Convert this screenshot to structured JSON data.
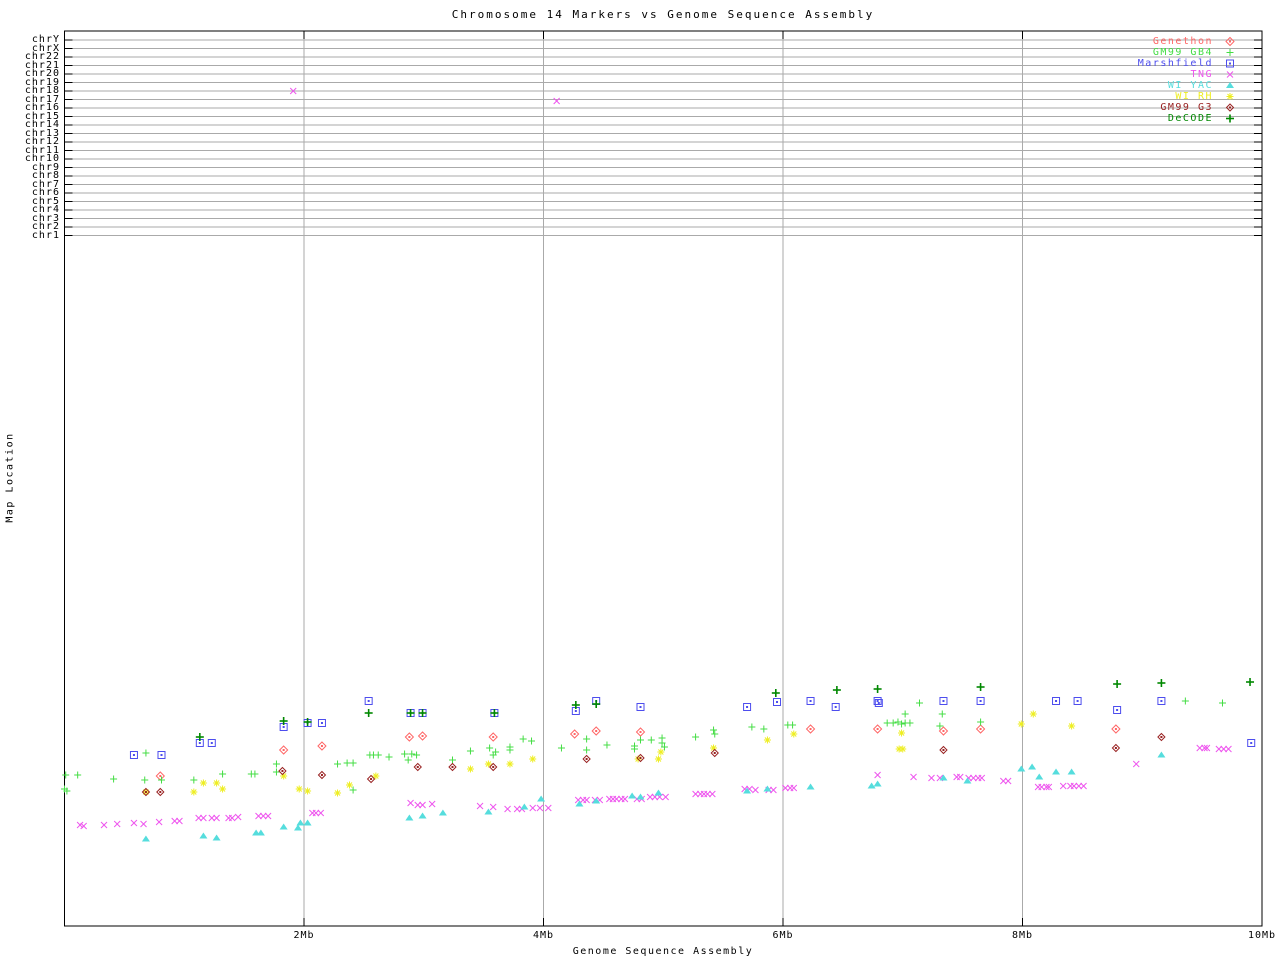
{
  "chart_data": {
    "type": "scatter",
    "title": "Chromosome 14 Markers vs Genome Sequence Assembly",
    "xlabel": "Genome Sequence Assembly",
    "ylabel": "Map Location",
    "x_unit": "Mb",
    "xlim": [
      0,
      10
    ],
    "x_gridlines_mb": [
      2,
      4,
      6,
      8
    ],
    "x_ticks": [
      {
        "mb": 2,
        "label": "2Mb"
      },
      {
        "mb": 4,
        "label": "4Mb"
      },
      {
        "mb": 6,
        "label": "6Mb"
      },
      {
        "mb": 8,
        "label": "8Mb"
      },
      {
        "mb": 10,
        "label": "10Mb"
      }
    ],
    "y_axis_chromosome_rows": [
      "chrY",
      "chrX",
      "chr22",
      "chr21",
      "chr20",
      "chr19",
      "chr18",
      "chr17",
      "chr16",
      "chr15",
      "chr14",
      "chr13",
      "chr12",
      "chr11",
      "chr10",
      "chr9",
      "chr8",
      "chr7",
      "chr6",
      "chr5",
      "chr4",
      "chr3",
      "chr2",
      "chr1"
    ],
    "grid": true,
    "legend_position": "top-right",
    "colors": {
      "grid": "#aaaaaa",
      "frame": "#000000",
      "background": "#ffffff"
    },
    "note": "x values in Mb read from axis; y values are vertical plot positions in screen px (Map Location axis has no numeric labels; chromosome rows occupy y 40-236). Two TNG markers fall on the chr18 and chr17 rows.",
    "series": [
      {
        "name": "Genethon",
        "marker": "diamond",
        "color": "#ff6666",
        "points": [
          [
            0.8,
            776
          ],
          [
            1.83,
            750
          ],
          [
            2.15,
            746
          ],
          [
            2.88,
            737
          ],
          [
            2.99,
            736
          ],
          [
            3.58,
            737
          ],
          [
            4.26,
            734
          ],
          [
            4.44,
            731
          ],
          [
            4.81,
            732
          ],
          [
            6.23,
            729
          ],
          [
            6.79,
            729
          ],
          [
            7.34,
            731
          ],
          [
            7.65,
            729
          ],
          [
            8.78,
            729
          ]
        ]
      },
      {
        "name": "GM99 GB4",
        "marker": "plus",
        "color": "#44dd44",
        "points": [
          [
            0.0,
            789
          ],
          [
            0.02,
            791
          ],
          [
            0.01,
            775
          ],
          [
            0.11,
            775
          ],
          [
            0.41,
            779
          ],
          [
            0.67,
            780
          ],
          [
            0.68,
            753
          ],
          [
            0.81,
            780
          ],
          [
            1.08,
            780
          ],
          [
            1.32,
            774
          ],
          [
            1.56,
            774
          ],
          [
            1.59,
            774
          ],
          [
            1.77,
            764
          ],
          [
            1.77,
            772
          ],
          [
            2.28,
            764
          ],
          [
            2.36,
            763
          ],
          [
            2.41,
            763
          ],
          [
            2.41,
            790
          ],
          [
            2.55,
            755
          ],
          [
            2.58,
            755
          ],
          [
            2.62,
            755
          ],
          [
            2.71,
            757
          ],
          [
            2.84,
            754
          ],
          [
            2.87,
            760
          ],
          [
            2.9,
            754
          ],
          [
            2.94,
            755
          ],
          [
            3.24,
            760
          ],
          [
            3.39,
            751
          ],
          [
            3.55,
            748
          ],
          [
            3.58,
            755
          ],
          [
            3.6,
            752
          ],
          [
            3.72,
            747
          ],
          [
            3.72,
            750
          ],
          [
            3.83,
            739
          ],
          [
            3.9,
            741
          ],
          [
            4.15,
            748
          ],
          [
            4.36,
            739
          ],
          [
            4.36,
            750
          ],
          [
            4.53,
            745
          ],
          [
            4.76,
            746
          ],
          [
            4.76,
            749
          ],
          [
            4.81,
            740
          ],
          [
            4.9,
            740
          ],
          [
            4.99,
            738
          ],
          [
            4.99,
            743
          ],
          [
            5.01,
            747
          ],
          [
            5.27,
            737
          ],
          [
            5.42,
            730
          ],
          [
            5.43,
            734
          ],
          [
            5.74,
            727
          ],
          [
            5.84,
            729
          ],
          [
            6.04,
            725
          ],
          [
            6.08,
            725
          ],
          [
            6.87,
            723
          ],
          [
            6.92,
            723
          ],
          [
            6.96,
            722
          ],
          [
            6.99,
            724
          ],
          [
            7.02,
            714
          ],
          [
            7.02,
            723
          ],
          [
            7.06,
            723
          ],
          [
            7.14,
            703
          ],
          [
            7.31,
            726
          ],
          [
            7.33,
            714
          ],
          [
            7.65,
            722
          ],
          [
            9.36,
            701
          ],
          [
            9.67,
            703
          ]
        ]
      },
      {
        "name": "Marshfield",
        "marker": "square-dot",
        "color": "#4d4dee",
        "points": [
          [
            0.58,
            755
          ],
          [
            0.81,
            755
          ],
          [
            1.13,
            743
          ],
          [
            1.23,
            743
          ],
          [
            1.83,
            727
          ],
          [
            2.03,
            723
          ],
          [
            2.15,
            723
          ],
          [
            2.54,
            701
          ],
          [
            2.89,
            713
          ],
          [
            2.99,
            713
          ],
          [
            3.59,
            713
          ],
          [
            4.27,
            711
          ],
          [
            4.44,
            701
          ],
          [
            4.81,
            707
          ],
          [
            5.7,
            707
          ],
          [
            5.95,
            702
          ],
          [
            6.23,
            701
          ],
          [
            6.44,
            707
          ],
          [
            6.79,
            701
          ],
          [
            6.8,
            703
          ],
          [
            7.34,
            701
          ],
          [
            7.65,
            701
          ],
          [
            8.28,
            701
          ],
          [
            8.46,
            701
          ],
          [
            8.79,
            710
          ],
          [
            9.16,
            701
          ],
          [
            9.91,
            743
          ]
        ]
      },
      {
        "name": "TNG",
        "marker": "x",
        "color": "#ee55ee",
        "points": [
          [
            0.13,
            825
          ],
          [
            0.16,
            826
          ],
          [
            0.33,
            825
          ],
          [
            0.44,
            824
          ],
          [
            0.58,
            823
          ],
          [
            0.66,
            824
          ],
          [
            0.79,
            822
          ],
          [
            0.92,
            821
          ],
          [
            0.96,
            821
          ],
          [
            1.12,
            818
          ],
          [
            1.16,
            818
          ],
          [
            1.23,
            818
          ],
          [
            1.27,
            818
          ],
          [
            1.37,
            818
          ],
          [
            1.4,
            818
          ],
          [
            1.45,
            817
          ],
          [
            1.62,
            816
          ],
          [
            1.66,
            816
          ],
          [
            1.7,
            816
          ],
          [
            1.91,
            91
          ],
          [
            2.07,
            813
          ],
          [
            2.1,
            813
          ],
          [
            2.14,
            813
          ],
          [
            2.89,
            803
          ],
          [
            2.95,
            805
          ],
          [
            2.99,
            805
          ],
          [
            3.07,
            804
          ],
          [
            3.47,
            806
          ],
          [
            3.58,
            807
          ],
          [
            3.7,
            809
          ],
          [
            3.78,
            809
          ],
          [
            3.82,
            809
          ],
          [
            3.91,
            808
          ],
          [
            3.97,
            808
          ],
          [
            4.04,
            808
          ],
          [
            4.11,
            101
          ],
          [
            4.29,
            800
          ],
          [
            4.33,
            800
          ],
          [
            4.36,
            800
          ],
          [
            4.43,
            800
          ],
          [
            4.47,
            800
          ],
          [
            4.55,
            799
          ],
          [
            4.58,
            799
          ],
          [
            4.61,
            799
          ],
          [
            4.65,
            799
          ],
          [
            4.68,
            799
          ],
          [
            4.78,
            799
          ],
          [
            4.82,
            799
          ],
          [
            4.89,
            797
          ],
          [
            4.93,
            797
          ],
          [
            4.97,
            797
          ],
          [
            5.02,
            797
          ],
          [
            5.27,
            794
          ],
          [
            5.31,
            794
          ],
          [
            5.34,
            794
          ],
          [
            5.37,
            794
          ],
          [
            5.41,
            794
          ],
          [
            5.68,
            789
          ],
          [
            5.72,
            789
          ],
          [
            5.77,
            790
          ],
          [
            5.88,
            790
          ],
          [
            5.92,
            790
          ],
          [
            6.02,
            788
          ],
          [
            6.06,
            788
          ],
          [
            6.09,
            788
          ],
          [
            6.79,
            775
          ],
          [
            7.09,
            777
          ],
          [
            7.24,
            778
          ],
          [
            7.31,
            778
          ],
          [
            7.45,
            777
          ],
          [
            7.48,
            777
          ],
          [
            7.55,
            778
          ],
          [
            7.59,
            778
          ],
          [
            7.63,
            778
          ],
          [
            7.66,
            778
          ],
          [
            7.84,
            781
          ],
          [
            7.88,
            781
          ],
          [
            8.13,
            787
          ],
          [
            8.16,
            787
          ],
          [
            8.2,
            787
          ],
          [
            8.22,
            787
          ],
          [
            8.34,
            786
          ],
          [
            8.4,
            786
          ],
          [
            8.43,
            786
          ],
          [
            8.47,
            786
          ],
          [
            8.51,
            786
          ],
          [
            8.95,
            764
          ],
          [
            9.48,
            748
          ],
          [
            9.52,
            748
          ],
          [
            9.54,
            748
          ],
          [
            9.64,
            749
          ],
          [
            9.68,
            749
          ],
          [
            9.72,
            749
          ]
        ]
      },
      {
        "name": "WI YAC",
        "marker": "triangle",
        "color": "#55dddd",
        "points": [
          [
            0.68,
            839
          ],
          [
            1.16,
            836
          ],
          [
            1.27,
            838
          ],
          [
            1.6,
            833
          ],
          [
            1.64,
            833
          ],
          [
            1.83,
            827
          ],
          [
            1.95,
            828
          ],
          [
            1.97,
            823
          ],
          [
            2.03,
            823
          ],
          [
            2.88,
            818
          ],
          [
            2.99,
            816
          ],
          [
            3.16,
            813
          ],
          [
            3.54,
            812
          ],
          [
            3.84,
            807
          ],
          [
            3.98,
            799
          ],
          [
            4.3,
            804
          ],
          [
            4.44,
            801
          ],
          [
            4.74,
            796
          ],
          [
            4.81,
            797
          ],
          [
            4.96,
            793
          ],
          [
            5.7,
            791
          ],
          [
            5.87,
            789
          ],
          [
            6.23,
            787
          ],
          [
            6.74,
            786
          ],
          [
            6.79,
            784
          ],
          [
            7.34,
            778
          ],
          [
            7.54,
            781
          ],
          [
            7.99,
            769
          ],
          [
            8.08,
            767
          ],
          [
            8.14,
            777
          ],
          [
            8.28,
            772
          ],
          [
            8.41,
            772
          ],
          [
            9.16,
            755
          ]
        ]
      },
      {
        "name": "WI RH",
        "marker": "star",
        "color": "#eeee22",
        "points": [
          [
            0.68,
            792
          ],
          [
            1.08,
            792
          ],
          [
            1.16,
            783
          ],
          [
            1.27,
            783
          ],
          [
            1.32,
            789
          ],
          [
            1.83,
            776
          ],
          [
            1.96,
            789
          ],
          [
            2.03,
            791
          ],
          [
            2.28,
            793
          ],
          [
            2.38,
            785
          ],
          [
            2.6,
            776
          ],
          [
            3.39,
            769
          ],
          [
            3.54,
            764
          ],
          [
            3.72,
            764
          ],
          [
            3.91,
            759
          ],
          [
            4.79,
            759
          ],
          [
            4.96,
            759
          ],
          [
            4.98,
            752
          ],
          [
            5.42,
            748
          ],
          [
            5.87,
            740
          ],
          [
            6.09,
            734
          ],
          [
            6.97,
            749
          ],
          [
            7.0,
            749
          ],
          [
            6.99,
            733
          ],
          [
            7.99,
            724
          ],
          [
            8.09,
            714
          ],
          [
            8.41,
            726
          ]
        ]
      },
      {
        "name": "GM99 G3",
        "marker": "diamond-dot",
        "color": "#992222",
        "points": [
          [
            0.68,
            792
          ],
          [
            0.8,
            792
          ],
          [
            1.82,
            771
          ],
          [
            2.15,
            775
          ],
          [
            2.56,
            779
          ],
          [
            2.95,
            767
          ],
          [
            3.24,
            767
          ],
          [
            3.58,
            767
          ],
          [
            4.36,
            759
          ],
          [
            4.81,
            758
          ],
          [
            5.43,
            753
          ],
          [
            7.34,
            750
          ],
          [
            8.78,
            748
          ],
          [
            9.16,
            737
          ]
        ]
      },
      {
        "name": "DeCODE",
        "marker": "plus-bold",
        "color": "#008800",
        "points": [
          [
            1.13,
            737
          ],
          [
            1.83,
            721
          ],
          [
            2.03,
            722
          ],
          [
            2.54,
            713
          ],
          [
            2.89,
            713
          ],
          [
            2.99,
            713
          ],
          [
            3.59,
            713
          ],
          [
            4.27,
            705
          ],
          [
            4.44,
            704
          ],
          [
            5.94,
            693
          ],
          [
            6.45,
            690
          ],
          [
            6.79,
            689
          ],
          [
            7.65,
            687
          ],
          [
            8.79,
            684
          ],
          [
            9.16,
            683
          ],
          [
            9.9,
            682
          ]
        ]
      }
    ]
  }
}
